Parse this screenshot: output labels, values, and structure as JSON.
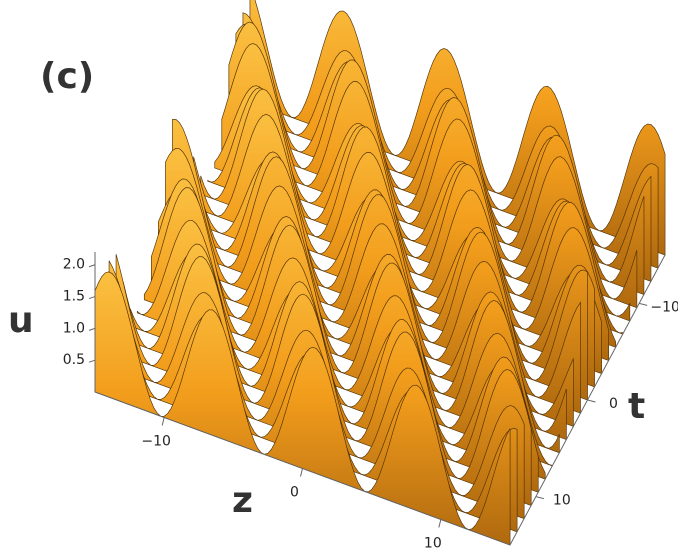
{
  "chart_data": {
    "type": "surface3d",
    "title": "(c)",
    "xlabel": "z",
    "ylabel": "t",
    "zlabel": "u",
    "color": "#f4a21e",
    "xlim": [
      -15,
      15
    ],
    "ylim": [
      -15,
      15
    ],
    "zlim": [
      0,
      2.2
    ],
    "xticks": [
      {
        "value": -10,
        "label": "−10"
      },
      0,
      10
    ],
    "yticks": [
      {
        "value": -10,
        "label": "−10"
      },
      0,
      10
    ],
    "zticks": [
      0.5,
      {
        "value": 1,
        "label": "1.0"
      },
      1.5,
      {
        "value": 2,
        "label": "2.0"
      }
    ]
  }
}
